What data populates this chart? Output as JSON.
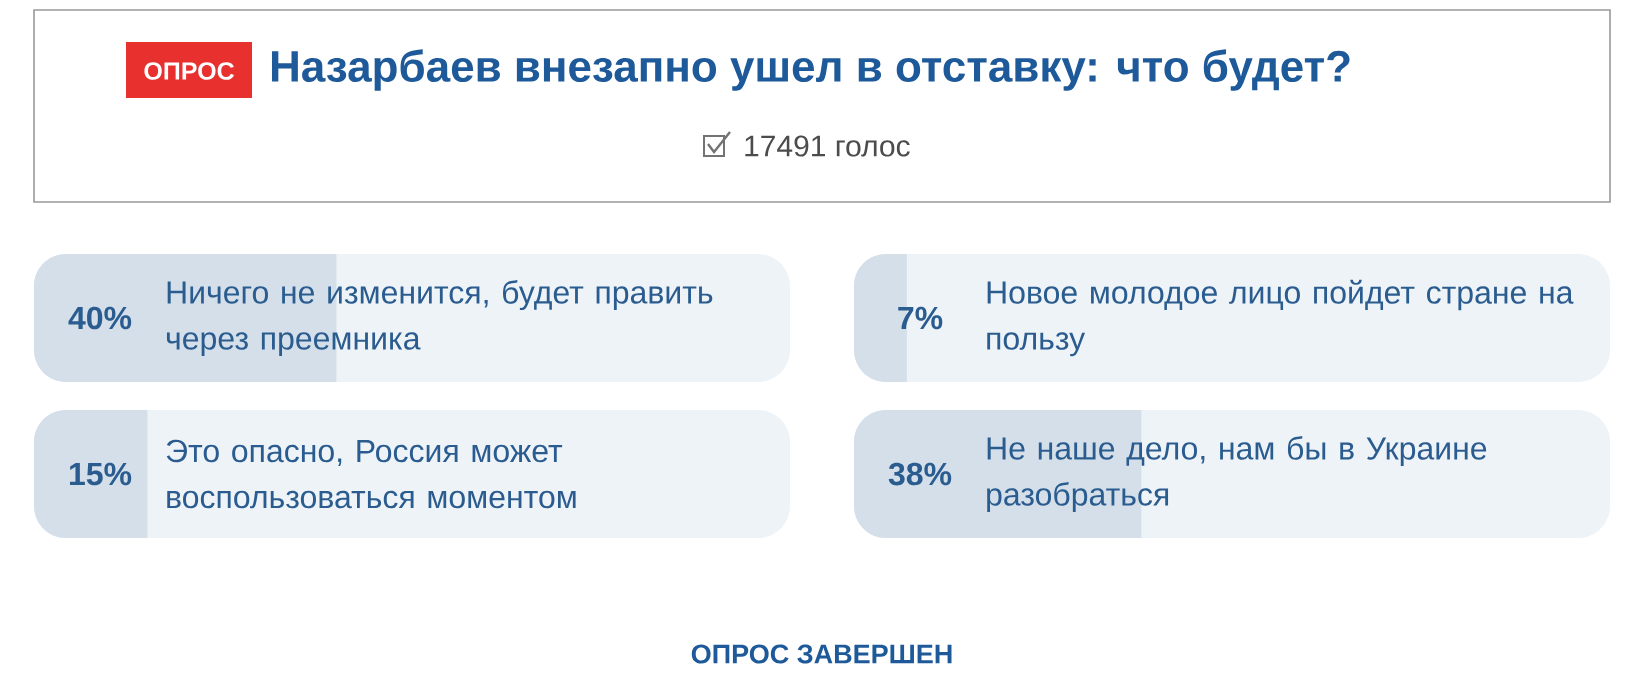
{
  "chart_data": [
    {
      "type": "bar",
      "orientation": "horizontal",
      "title": "Назарбаев внезапно ушел в отставку: что будет?",
      "subtitle": "17491 голос",
      "annotations": [
        "ОПРОС",
        "ОПРОС ЗАВЕРШЕН"
      ],
      "categories": [
        "Ничего не изменится, будет править через преемника",
        "Это опасно, Россия может воспользоваться моментом"
      ],
      "values": [
        40,
        15
      ],
      "value_labels": [
        "40%",
        "15%"
      ],
      "color": "#d4dfea",
      "xlim": [
        0,
        100
      ],
      "tick_labels": false
    },
    {
      "type": "bar",
      "orientation": "horizontal",
      "categories": [
        "Новое молодое лицо пойдет стране на пользу",
        "Не наше дело, нам бы в Украине разобраться"
      ],
      "values": [
        7,
        38
      ],
      "value_labels": [
        "7%",
        "38%"
      ],
      "color": "#d4dfea",
      "xlim": [
        0,
        100
      ],
      "tick_labels": false
    }
  ]
}
